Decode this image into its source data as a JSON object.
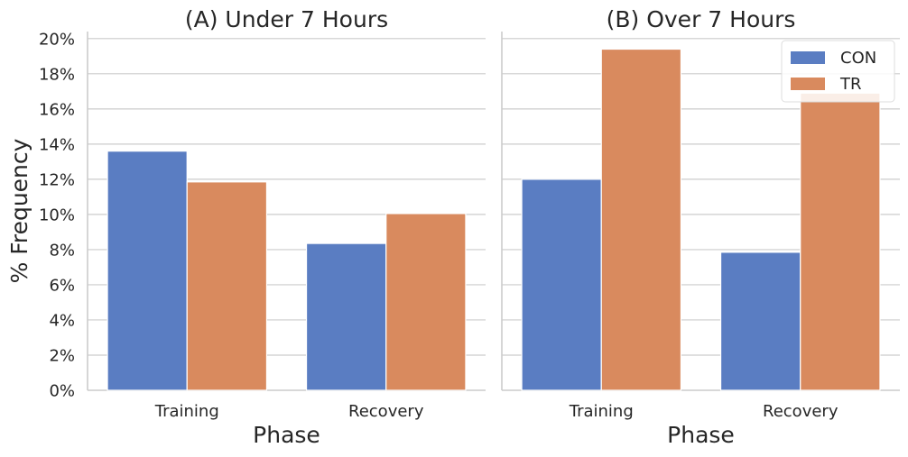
{
  "chart_data": [
    {
      "type": "bar",
      "title": "(A) Under 7 Hours",
      "xlabel": "Phase",
      "ylabel": "% Frequency",
      "categories": [
        "Training",
        "Recovery"
      ],
      "series": [
        {
          "name": "CON",
          "values": [
            13.6,
            8.35
          ]
        },
        {
          "name": "TR",
          "values": [
            11.85,
            10.05
          ]
        }
      ],
      "ylim": [
        0,
        20.4
      ],
      "yticks": [
        "0%",
        "2%",
        "4%",
        "6%",
        "8%",
        "10%",
        "12%",
        "14%",
        "16%",
        "18%",
        "20%"
      ],
      "grid": "horizontal",
      "legend": "none"
    },
    {
      "type": "bar",
      "title": "(B) Over 7 Hours",
      "xlabel": "Phase",
      "ylabel": "",
      "categories": [
        "Training",
        "Recovery"
      ],
      "series": [
        {
          "name": "CON",
          "values": [
            12.0,
            7.85
          ]
        },
        {
          "name": "TR",
          "values": [
            19.4,
            16.9
          ]
        }
      ],
      "ylim": [
        0,
        20.4
      ],
      "grid": "horizontal",
      "legend": "top-right"
    }
  ],
  "colors": {
    "CON": "#5a7dc2",
    "TR": "#d98a5e",
    "grid": "#cccccc",
    "text": "#262626"
  }
}
